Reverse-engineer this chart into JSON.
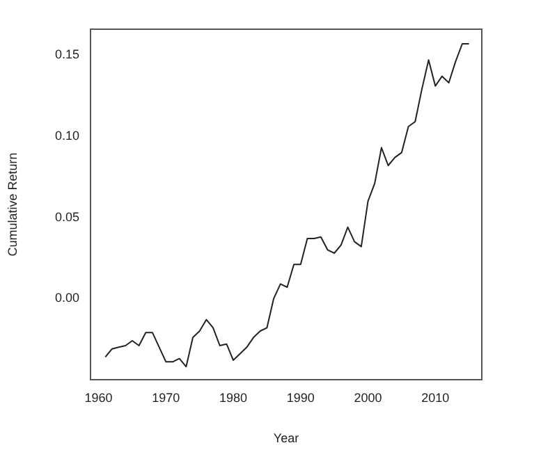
{
  "chart_data": {
    "type": "line",
    "xlabel": "Year",
    "ylabel": "Cumulative Return",
    "x": [
      1961,
      1962,
      1963,
      1964,
      1965,
      1966,
      1967,
      1968,
      1969,
      1970,
      1971,
      1972,
      1973,
      1974,
      1975,
      1976,
      1977,
      1978,
      1979,
      1980,
      1981,
      1982,
      1983,
      1984,
      1985,
      1986,
      1987,
      1988,
      1989,
      1990,
      1991,
      1992,
      1993,
      1994,
      1995,
      1996,
      1997,
      1998,
      1999,
      2000,
      2001,
      2002,
      2003,
      2004,
      2005,
      2006,
      2007,
      2008,
      2009,
      2010,
      2011,
      2012,
      2013,
      2014,
      2015
    ],
    "series": [
      {
        "color": "#222222",
        "values": [
          -0.036,
          -0.031,
          -0.03,
          -0.029,
          -0.026,
          -0.029,
          -0.021,
          -0.021,
          -0.03,
          -0.039,
          -0.039,
          -0.037,
          -0.042,
          -0.024,
          -0.02,
          -0.013,
          -0.018,
          -0.029,
          -0.028,
          -0.038,
          -0.034,
          -0.03,
          -0.024,
          -0.02,
          -0.018,
          0.0,
          0.009,
          0.007,
          0.021,
          0.021,
          0.037,
          0.037,
          0.038,
          0.03,
          0.028,
          0.033,
          0.044,
          0.035,
          0.032,
          0.06,
          0.071,
          0.093,
          0.082,
          0.087,
          0.09,
          0.106,
          0.109,
          0.129,
          0.147,
          0.131,
          0.137,
          0.133,
          0.146,
          0.157,
          0.157
        ]
      }
    ],
    "xlim": [
      1958.8,
      2016.9
    ],
    "ylim": [
      -0.05,
      0.166
    ],
    "xticks": [
      1960,
      1970,
      1980,
      1990,
      2000,
      2010
    ],
    "yticks": [
      {
        "value": 0,
        "label": "0.00"
      },
      {
        "value": 0.05,
        "label": "0.05"
      },
      {
        "value": 0.1,
        "label": "0.10"
      },
      {
        "value": 0.15,
        "label": "0.15"
      }
    ],
    "grid": false,
    "legend": false,
    "marker": "none",
    "line_style": "solid"
  }
}
